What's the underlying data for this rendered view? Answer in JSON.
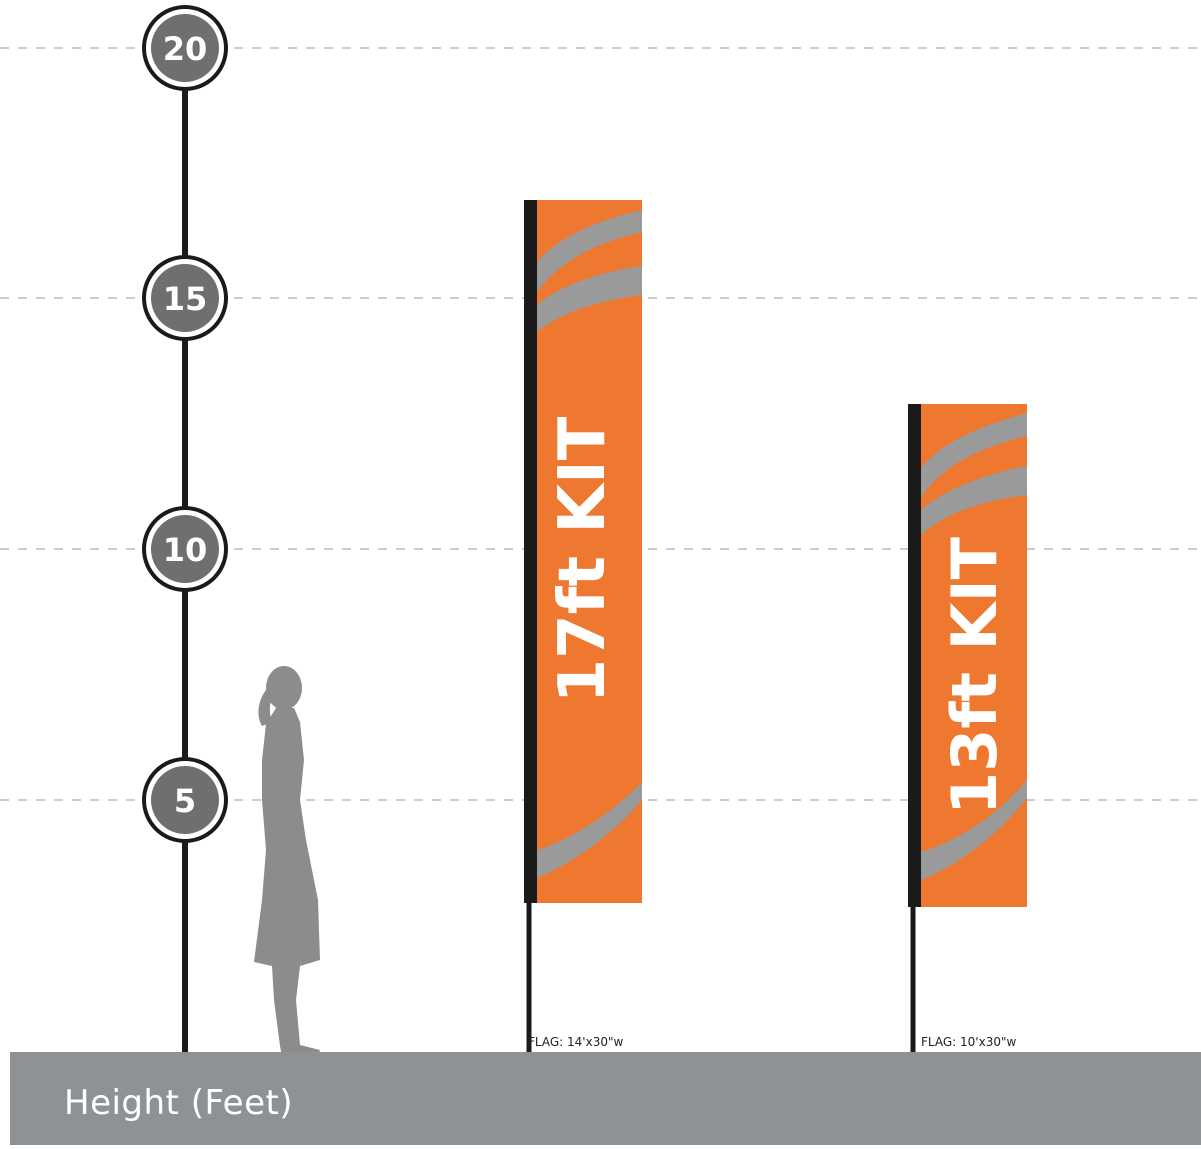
{
  "scale": {
    "title": "Height (Feet)",
    "markers": [
      {
        "label": "20",
        "value": 20
      },
      {
        "label": "15",
        "value": 15
      },
      {
        "label": "10",
        "value": 10
      },
      {
        "label": "5",
        "value": 5
      }
    ]
  },
  "kits": [
    {
      "name": "17ft KIT",
      "caption": "FLAG: 14'x30\"w"
    },
    {
      "name": "13ft KIT",
      "caption": "FLAG: 10'x30\"w"
    }
  ],
  "colors": {
    "flag": "#ef7830",
    "swoosh": "#9a9a9a",
    "pole": "#1a1a1a",
    "ground": "#8f9295",
    "silhouette": "#8c8c8c",
    "gridline": "#bbbbbb"
  }
}
